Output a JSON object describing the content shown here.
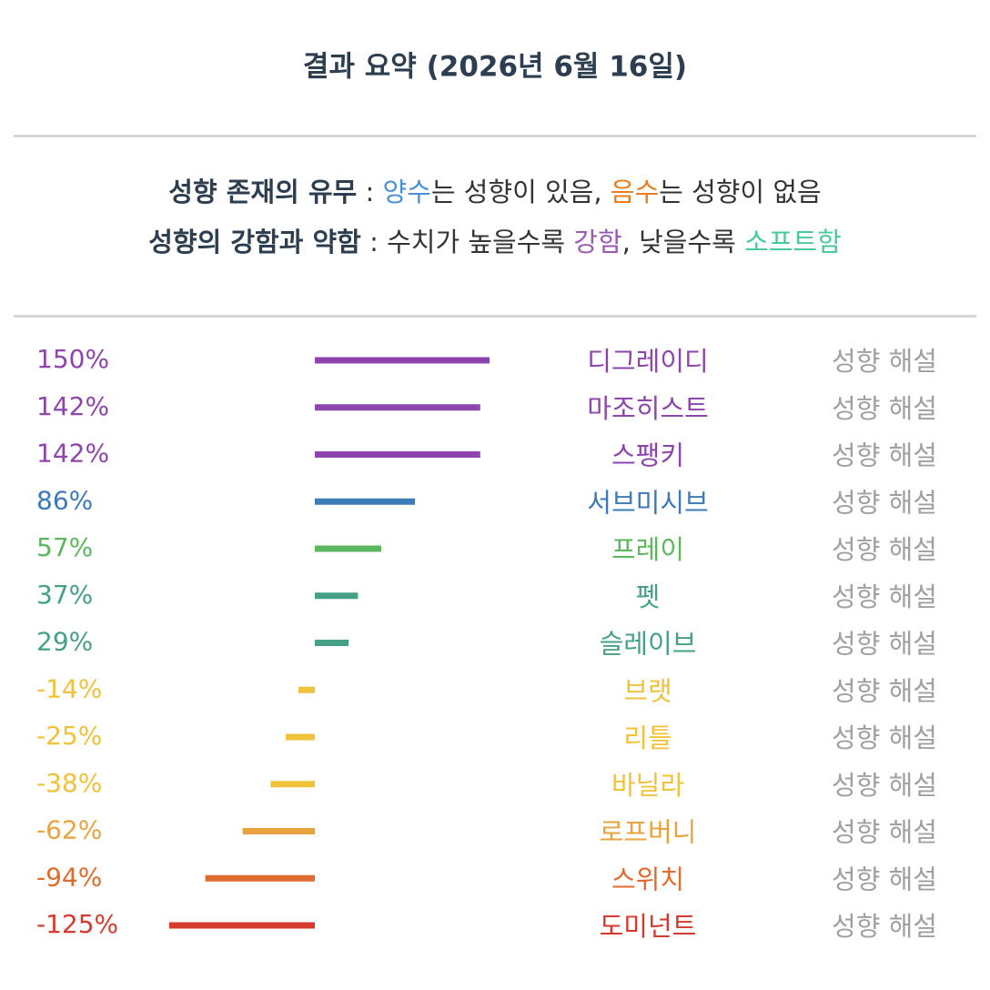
{
  "title": "결과 요약 (2026년 6월 16일)",
  "legend": [
    {
      "segments": [
        {
          "text": "성향 존재의 유무",
          "bold": true
        },
        {
          "text": " : "
        },
        {
          "text": "양수",
          "color": "#4a90d9"
        },
        {
          "text": "는 성향이 있음, "
        },
        {
          "text": "음수",
          "color": "#e67e22"
        },
        {
          "text": "는 성향이 없음"
        }
      ]
    },
    {
      "segments": [
        {
          "text": "성향의 강함과 약함",
          "bold": true
        },
        {
          "text": " : "
        },
        {
          "text": "수치가 높을수록 "
        },
        {
          "text": "강함",
          "color": "#9b59b6"
        },
        {
          "text": ", 낮을수록 "
        },
        {
          "text": "소프트함",
          "color": "#48c9a0"
        }
      ]
    }
  ],
  "chart_data": {
    "type": "bar",
    "categories": [
      "디그레이디",
      "마조히스트",
      "스팽키",
      "서브미시브",
      "프레이",
      "펫",
      "슬레이브",
      "브랫",
      "리틀",
      "바닐라",
      "로프버니",
      "스위치",
      "도미넌트"
    ],
    "values": [
      150,
      142,
      142,
      86,
      57,
      37,
      29,
      -14,
      -25,
      -38,
      -62,
      -94,
      -125
    ],
    "value_labels": [
      "150%",
      "142%",
      "142%",
      "86%",
      "57%",
      "37%",
      "29%",
      "-14%",
      "-25%",
      "-38%",
      "-62%",
      "-94%",
      "-125%"
    ],
    "colors": [
      "#8e44ad",
      "#8e44ad",
      "#8e44ad",
      "#3d7ab8",
      "#5cb85c",
      "#45a085",
      "#45a085",
      "#f0c23b",
      "#f0c23b",
      "#f0c23b",
      "#e8a33d",
      "#e06b2e",
      "#d63a2f"
    ],
    "link_text": "성향 해설"
  }
}
